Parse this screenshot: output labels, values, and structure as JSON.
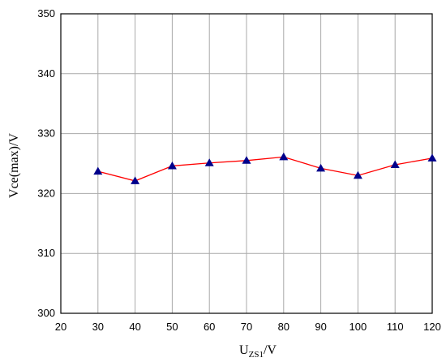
{
  "chart_data": {
    "type": "line",
    "xlabel": {
      "main": "U",
      "sub": "ZS1",
      "rest": "/V"
    },
    "ylabel": "Vce(max)/V",
    "xlim": [
      20,
      120
    ],
    "ylim": [
      300,
      350
    ],
    "xticks": [
      20,
      30,
      40,
      50,
      60,
      70,
      80,
      90,
      100,
      110,
      120
    ],
    "yticks": [
      300,
      310,
      320,
      330,
      340,
      350
    ],
    "grid": true,
    "series": [
      {
        "line_color": "#ff0000",
        "marker": "triangle",
        "marker_color": "#00008b",
        "x": [
          30,
          40,
          50,
          60,
          70,
          80,
          90,
          100,
          110,
          120
        ],
        "y": [
          323.7,
          322.1,
          324.6,
          325.1,
          325.5,
          326.1,
          324.2,
          323.0,
          324.8,
          325.9
        ]
      }
    ]
  }
}
